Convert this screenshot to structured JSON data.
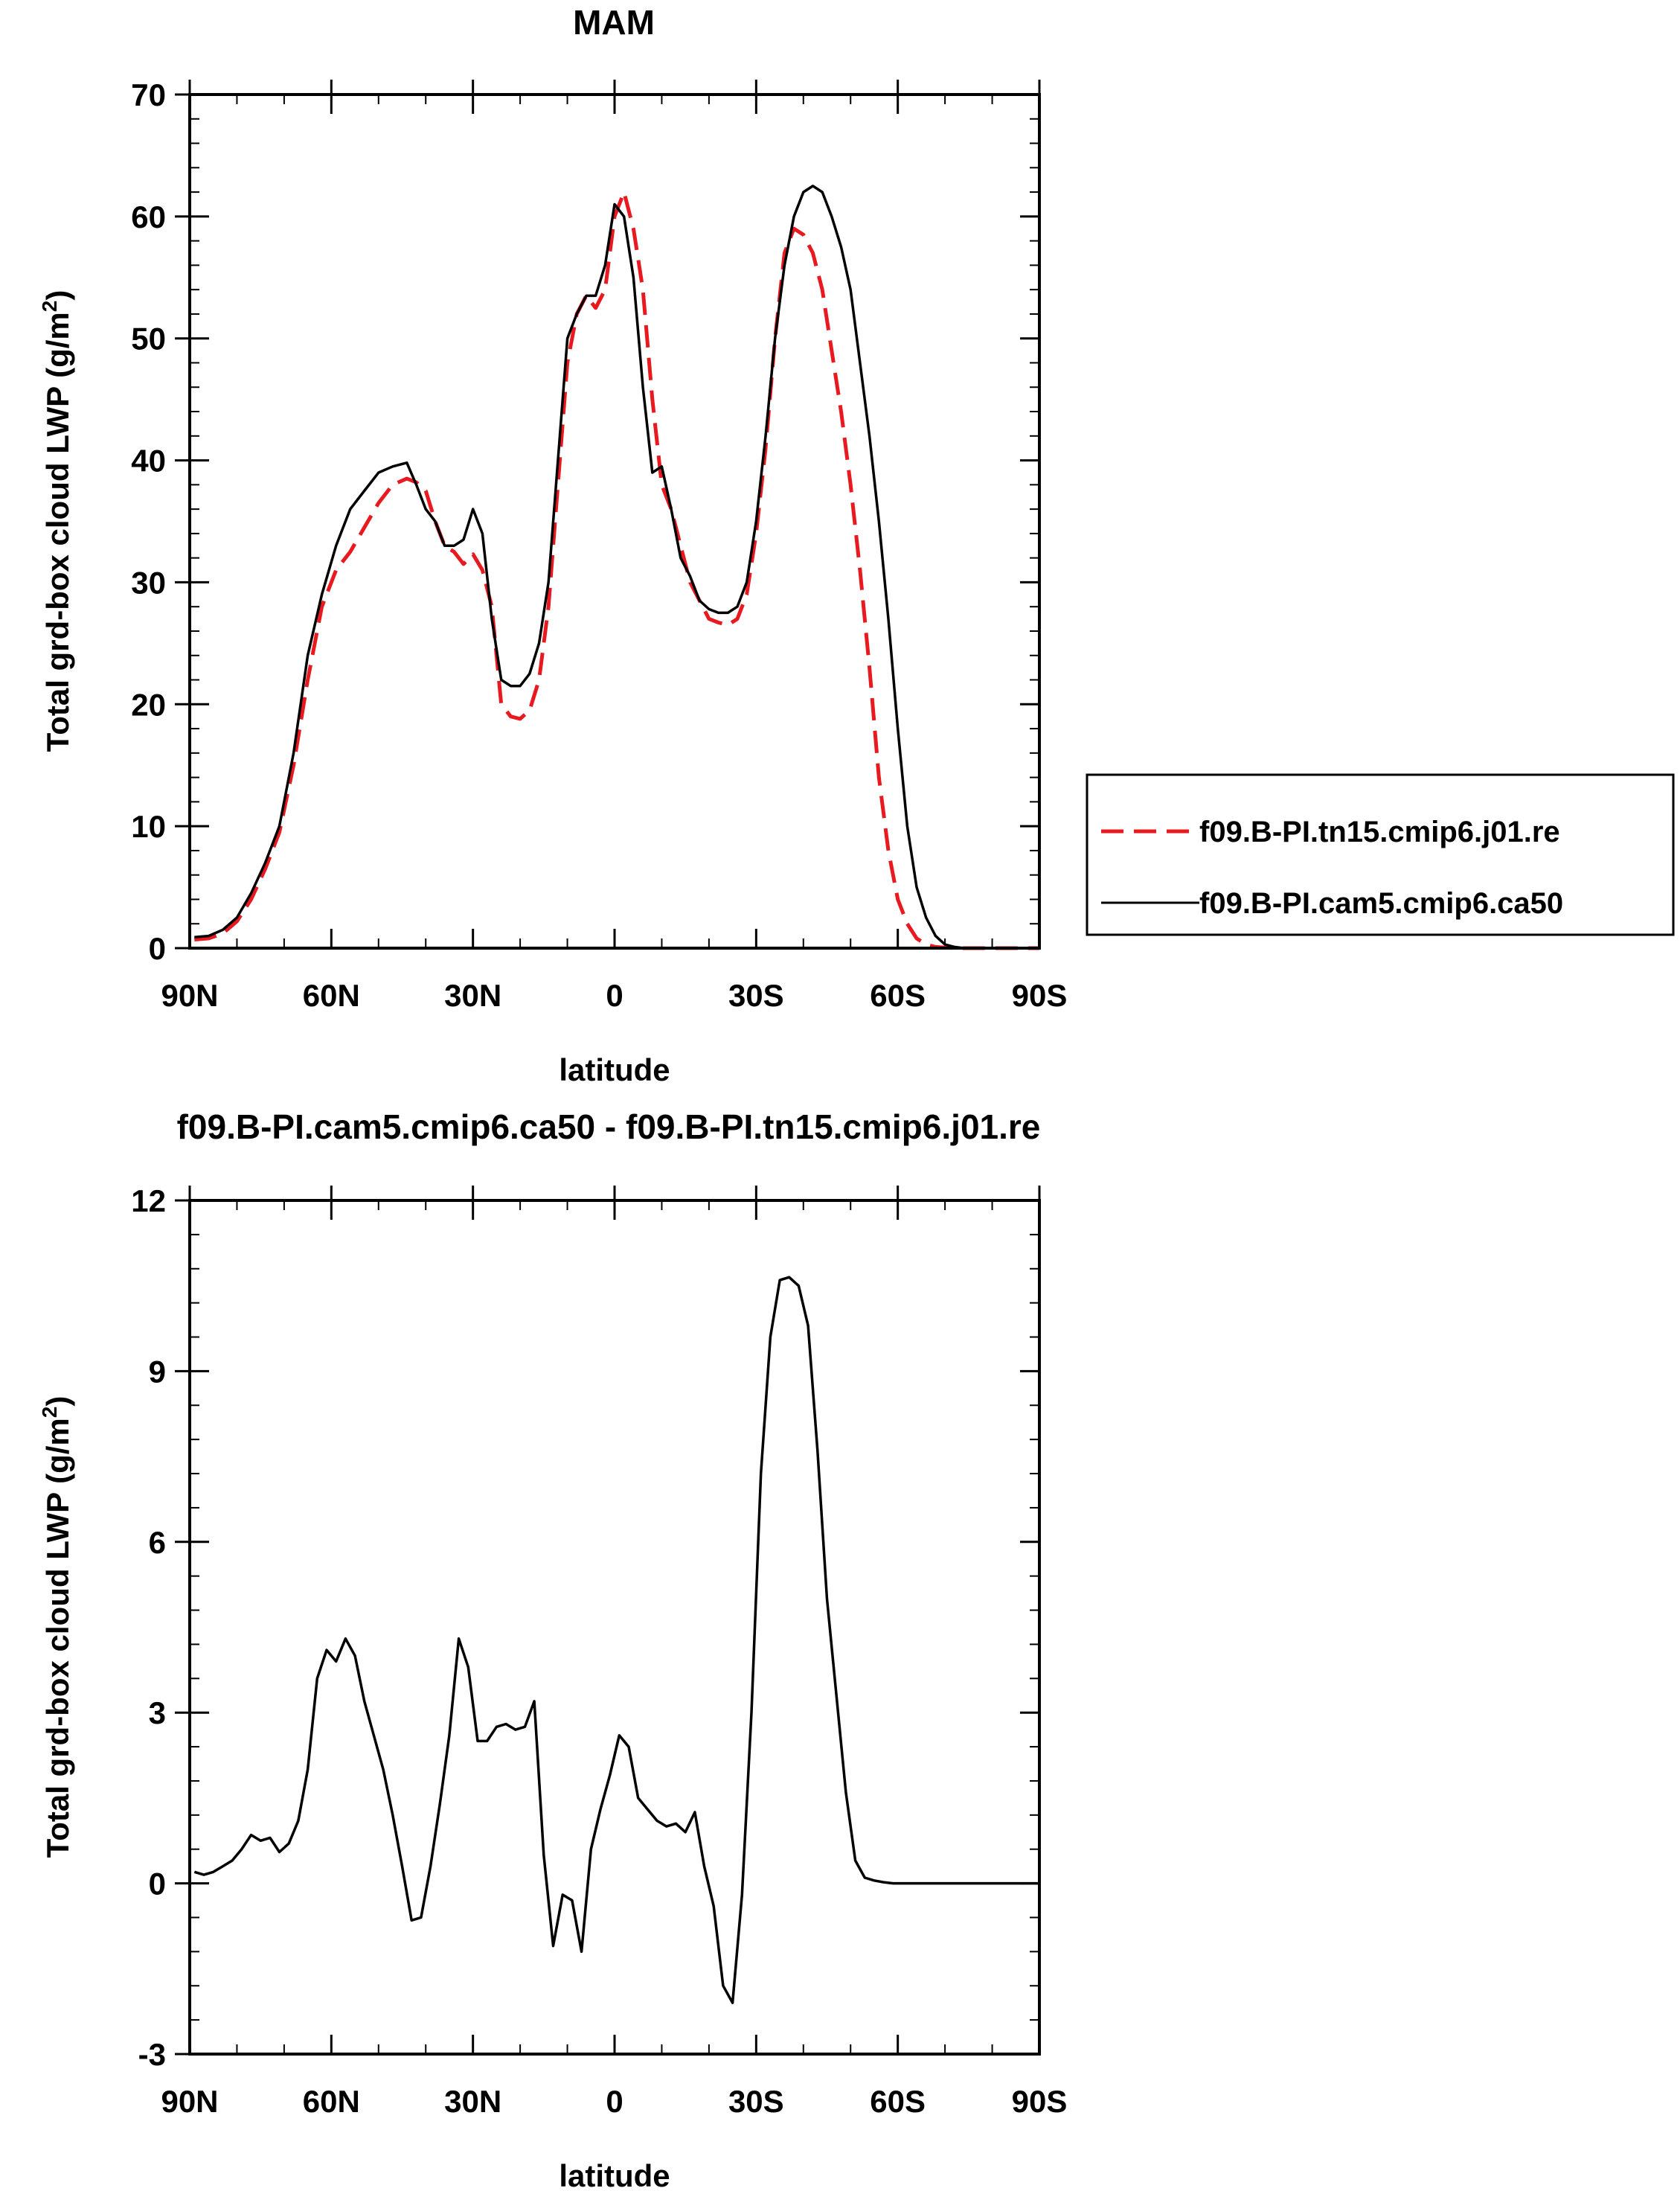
{
  "chart_data": [
    {
      "type": "line",
      "title": "MAM",
      "xlabel": "latitude",
      "ylabel": "Total grd-box cloud LWP (g/m",
      "ylabel_sup": "2",
      "ylabel_close": ")",
      "xlim": [
        90,
        -90
      ],
      "ylim": [
        0,
        70
      ],
      "x_ticks": [
        90,
        60,
        30,
        0,
        -30,
        -60,
        -90
      ],
      "x_tick_labels": [
        "90N",
        "60N",
        "30N",
        "0",
        "30S",
        "60S",
        "90S"
      ],
      "y_ticks": [
        0,
        10,
        20,
        30,
        40,
        50,
        60,
        70
      ],
      "y_tick_labels": [
        "0",
        "10",
        "20",
        "30",
        "40",
        "50",
        "60",
        "70"
      ],
      "legend_position": "right",
      "series": [
        {
          "name": "f09.B-PI.tn15.cmip6.j01.re",
          "color": "#e8191f",
          "dash": "dashed",
          "x": [
            89,
            86,
            83,
            80,
            77,
            74,
            71,
            68,
            65,
            62,
            59,
            56,
            53,
            50,
            47,
            44,
            42,
            40,
            38,
            36,
            34,
            32,
            30,
            28,
            26,
            24,
            22,
            20,
            18,
            16,
            14,
            12,
            10,
            8,
            6,
            4,
            2,
            0,
            -2,
            -3,
            -4,
            -6,
            -8,
            -10,
            -12,
            -14,
            -16,
            -18,
            -20,
            -22,
            -24,
            -26,
            -28,
            -30,
            -32,
            -34,
            -36,
            -38,
            -40,
            -42,
            -44,
            -46,
            -48,
            -50,
            -52,
            -54,
            -56,
            -58,
            -60,
            -62,
            -64,
            -66,
            -68,
            -70,
            -72,
            -74,
            -76,
            -80,
            -85,
            -90
          ],
          "y": [
            0.7,
            0.8,
            1.2,
            2.2,
            4,
            6.5,
            9.5,
            15,
            22,
            28,
            31,
            32.5,
            34.5,
            36.5,
            38,
            38.5,
            38.2,
            37.5,
            35,
            33,
            32.5,
            31.5,
            32.3,
            31,
            28,
            20,
            19,
            18.8,
            19.5,
            22,
            28,
            38,
            48,
            52,
            53.5,
            52.5,
            54,
            60,
            62,
            60.5,
            59,
            54,
            45,
            38,
            36,
            33,
            30,
            28.5,
            27,
            26.7,
            26.5,
            27,
            29,
            34,
            41,
            50,
            57,
            59,
            58.5,
            57,
            54,
            49,
            44,
            38,
            31,
            23,
            14,
            8,
            4,
            2,
            0.8,
            0.3,
            0.1,
            0.05,
            0,
            0,
            0,
            0,
            0,
            0
          ]
        },
        {
          "name": "f09.B-PI.cam5.cmip6.ca50",
          "color": "#000000",
          "dash": "solid",
          "x": [
            89,
            86,
            83,
            80,
            77,
            74,
            71,
            68,
            65,
            62,
            59,
            56,
            53,
            50,
            47,
            44,
            42,
            40,
            38,
            36,
            34,
            32,
            30,
            28,
            26,
            24,
            22,
            20,
            18,
            16,
            14,
            12,
            10,
            8,
            6,
            4,
            2,
            0,
            -2,
            -3,
            -4,
            -6,
            -8,
            -10,
            -12,
            -14,
            -16,
            -18,
            -20,
            -22,
            -24,
            -26,
            -28,
            -30,
            -32,
            -34,
            -36,
            -38,
            -40,
            -42,
            -44,
            -46,
            -48,
            -50,
            -52,
            -54,
            -56,
            -58,
            -60,
            -62,
            -64,
            -66,
            -68,
            -70,
            -72,
            -74,
            -76,
            -80,
            -85,
            -90
          ],
          "y": [
            0.9,
            1,
            1.5,
            2.5,
            4.5,
            7,
            10,
            16,
            24,
            29,
            33,
            36,
            37.5,
            39,
            39.5,
            39.8,
            38,
            36,
            35,
            33,
            33,
            33.5,
            36,
            34,
            27,
            22,
            21.5,
            21.5,
            22.5,
            25,
            30,
            40,
            50,
            52,
            53.5,
            53.5,
            56,
            61,
            60,
            57.5,
            55,
            46,
            39,
            39.5,
            36,
            32,
            30.5,
            28.5,
            27.8,
            27.5,
            27.5,
            28,
            30,
            35,
            42,
            50,
            56,
            60,
            62,
            62.5,
            62,
            60,
            57.5,
            54,
            48,
            42,
            35,
            27,
            18,
            10,
            5,
            2.5,
            1,
            0.3,
            0.1,
            0,
            0,
            0,
            0,
            0
          ]
        }
      ]
    },
    {
      "type": "line",
      "title": "f09.B-PI.cam5.cmip6.ca50 - f09.B-PI.tn15.cmip6.j01.re",
      "xlabel": "latitude",
      "ylabel": "Total grd-box cloud LWP (g/m",
      "ylabel_sup": "2",
      "ylabel_close": ")",
      "xlim": [
        90,
        -90
      ],
      "ylim": [
        -3,
        12
      ],
      "x_ticks": [
        90,
        60,
        30,
        0,
        -30,
        -60,
        -90
      ],
      "x_tick_labels": [
        "90N",
        "60N",
        "30N",
        "0",
        "30S",
        "60S",
        "90S"
      ],
      "y_ticks": [
        -3,
        0,
        3,
        6,
        9,
        12
      ],
      "y_tick_labels": [
        "-3",
        "0",
        "3",
        "6",
        "9",
        "12"
      ],
      "series": [
        {
          "color": "#000000",
          "dash": "solid",
          "x": [
            89,
            87,
            85,
            83,
            81,
            79,
            77,
            75,
            73,
            71,
            69,
            67,
            65,
            63,
            61,
            59,
            57,
            55,
            53,
            51,
            49,
            47,
            45,
            43,
            41,
            39,
            37,
            35,
            33,
            31,
            29,
            27,
            25,
            23,
            21,
            19,
            17,
            15,
            13,
            11,
            9,
            7,
            5,
            3,
            1,
            -1,
            -3,
            -5,
            -7,
            -9,
            -11,
            -13,
            -15,
            -17,
            -19,
            -21,
            -23,
            -25,
            -27,
            -29,
            -31,
            -33,
            -35,
            -37,
            -39,
            -41,
            -43,
            -45,
            -47,
            -49,
            -51,
            -53,
            -55,
            -57,
            -59,
            -61,
            -63,
            -65,
            -67,
            -69,
            -71,
            -73,
            -75,
            -80,
            -85,
            -90
          ],
          "y": [
            0.2,
            0.15,
            0.2,
            0.3,
            0.4,
            0.6,
            0.85,
            0.75,
            0.8,
            0.55,
            0.7,
            1.1,
            2,
            3.6,
            4.1,
            3.9,
            4.3,
            4,
            3.2,
            2.6,
            2,
            1.2,
            0.3,
            -0.65,
            -0.6,
            0.3,
            1.4,
            2.6,
            4.3,
            3.8,
            2.5,
            2.5,
            2.75,
            2.8,
            2.7,
            2.75,
            3.2,
            0.5,
            -1.1,
            -0.2,
            -0.3,
            -1.2,
            0.6,
            1.3,
            1.9,
            2.6,
            2.4,
            1.5,
            1.3,
            1.1,
            1.0,
            1.05,
            0.9,
            1.25,
            0.3,
            -0.4,
            -1.8,
            -2.1,
            -0.2,
            3,
            7.2,
            9.6,
            10.6,
            10.65,
            10.5,
            9.8,
            7.6,
            5,
            3.3,
            1.6,
            0.4,
            0.1,
            0.05,
            0.02,
            0,
            0,
            0,
            0,
            0,
            0,
            0,
            0,
            0,
            0,
            0,
            0
          ]
        }
      ]
    }
  ]
}
